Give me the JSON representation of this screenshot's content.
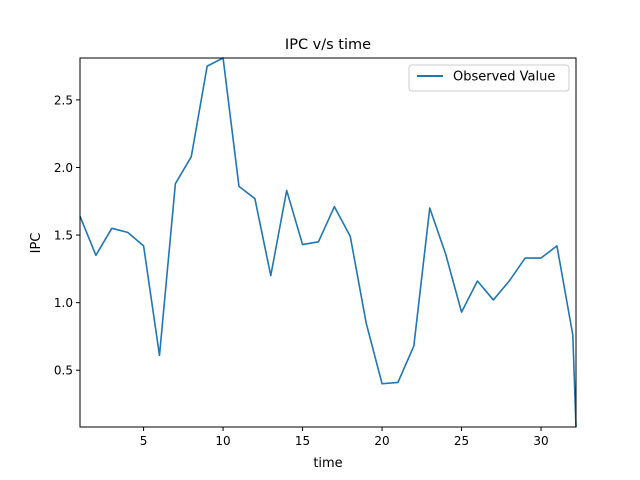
{
  "chart_data": {
    "type": "line",
    "title": "IPC v/s time",
    "xlabel": "time",
    "ylabel": "IPC",
    "xlim": [
      1,
      32.2
    ],
    "ylim": [
      0.08,
      2.81
    ],
    "xticks": [
      5,
      10,
      15,
      20,
      25,
      30
    ],
    "yticks": [
      0.5,
      1.0,
      1.5,
      2.0,
      2.5
    ],
    "ytick_labels": [
      "0.5",
      "1.0",
      "1.5",
      "2.0",
      "2.5"
    ],
    "grid": false,
    "legend_position": "top-right",
    "series": [
      {
        "name": "Observed Value",
        "color": "#1f77b4",
        "x": [
          1,
          2,
          3,
          4,
          5,
          6,
          7,
          8,
          9,
          10,
          11,
          12,
          13,
          14,
          15,
          16,
          17,
          18,
          19,
          20,
          21,
          22,
          23,
          24,
          25,
          26,
          27,
          28,
          29,
          30,
          31,
          32,
          32.2
        ],
        "y": [
          1.64,
          1.35,
          1.55,
          1.52,
          1.42,
          0.61,
          1.88,
          2.08,
          2.75,
          2.81,
          1.86,
          1.77,
          1.2,
          1.83,
          1.43,
          1.45,
          1.71,
          1.49,
          0.85,
          0.4,
          0.41,
          0.68,
          1.7,
          1.36,
          0.93,
          1.16,
          1.02,
          1.16,
          1.33,
          1.33,
          1.42,
          0.76,
          0.08
        ]
      }
    ]
  }
}
